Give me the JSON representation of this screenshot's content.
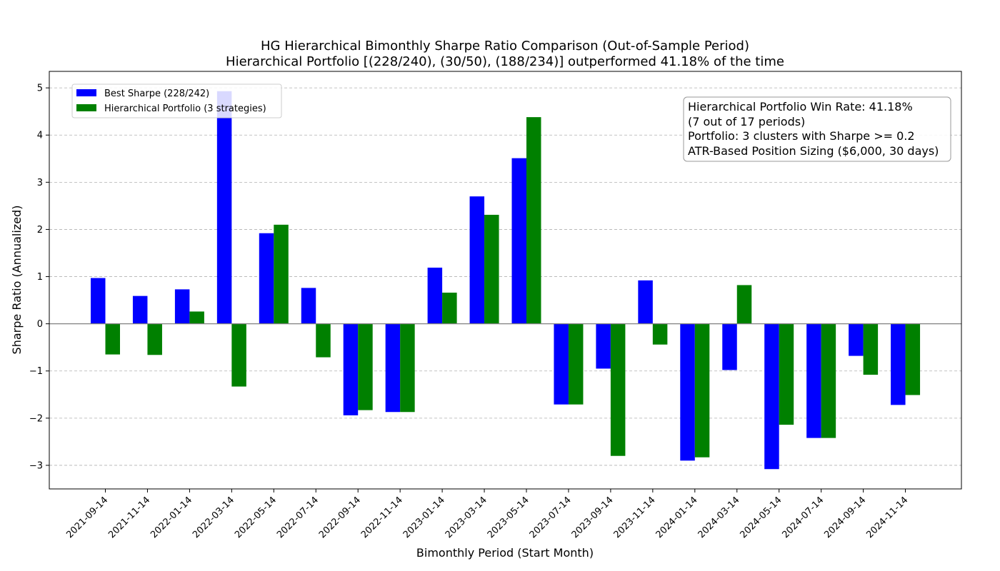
{
  "chart_data": {
    "type": "bar",
    "title": "HG Hierarchical Bimonthly Sharpe Ratio Comparison (Out-of-Sample Period)",
    "subtitle": "Hierarchical Portfolio [(228/240), (30/50), (188/234)] outperformed 41.18% of the time",
    "xlabel": "Bimonthly Period (Start Month)",
    "ylabel": "Sharpe Ratio (Annualized)",
    "ylim": [
      -3.5,
      5.35
    ],
    "yticks": [
      -3,
      -2,
      -1,
      0,
      1,
      2,
      3,
      4,
      5
    ],
    "ytick_labels": [
      "−3",
      "−2",
      "−1",
      "0",
      "1",
      "2",
      "3",
      "4",
      "5"
    ],
    "grid": "y-dashed",
    "legend_position": "top-left",
    "categories": [
      "2021-09-14",
      "2021-11-14",
      "2022-01-14",
      "2022-03-14",
      "2022-05-14",
      "2022-07-14",
      "2022-09-14",
      "2022-11-14",
      "2023-01-14",
      "2023-03-14",
      "2023-05-14",
      "2023-07-14",
      "2023-09-14",
      "2023-11-14",
      "2024-01-14",
      "2024-03-14",
      "2024-05-14",
      "2024-07-14",
      "2024-09-14",
      "2024-11-14"
    ],
    "series": [
      {
        "name": "Best Sharpe (228/242)",
        "color": "#0000ff",
        "values": [
          0.97,
          0.59,
          0.73,
          4.93,
          1.92,
          0.76,
          -1.94,
          -1.87,
          1.19,
          2.7,
          3.51,
          -1.71,
          -0.95,
          0.92,
          -2.9,
          -0.98,
          -3.08,
          -2.42,
          -0.68,
          -1.72
        ]
      },
      {
        "name": "Hierarchical Portfolio (3 strategies)",
        "color": "#008000",
        "values": [
          -0.65,
          -0.66,
          0.26,
          -1.33,
          2.1,
          -0.71,
          -1.83,
          -1.87,
          0.66,
          2.31,
          4.38,
          -1.71,
          -2.8,
          -0.44,
          -2.83,
          0.82,
          -2.14,
          -2.42,
          -1.08,
          -1.51
        ]
      }
    ],
    "annotation": [
      "Hierarchical Portfolio Win Rate: 41.18%",
      "(7 out of 17 periods)",
      "Portfolio: 3 clusters with Sharpe >= 0.2",
      "ATR-Based Position Sizing ($6,000, 30 days)"
    ]
  }
}
